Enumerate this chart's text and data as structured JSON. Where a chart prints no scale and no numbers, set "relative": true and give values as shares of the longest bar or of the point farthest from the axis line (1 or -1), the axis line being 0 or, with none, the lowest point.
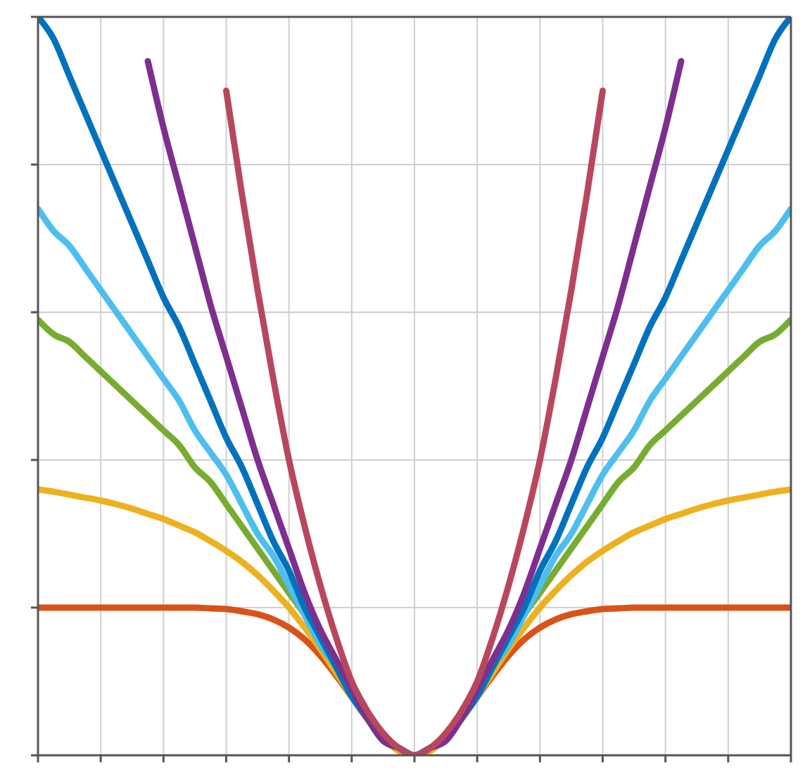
{
  "chart_data": {
    "type": "line",
    "relative": true,
    "tick_labels": false,
    "grid": true,
    "legend": false,
    "marker": "none",
    "line_style": "solid",
    "categories": [
      null,
      null,
      null,
      null,
      null,
      null,
      null,
      null,
      null,
      null,
      null,
      null,
      null,
      null,
      null,
      null,
      null,
      null,
      null,
      null,
      null,
      null,
      null,
      null,
      null,
      null,
      null,
      null,
      null,
      null,
      null,
      null,
      null,
      null,
      null,
      null,
      null,
      null,
      null,
      null,
      null,
      null,
      null,
      null,
      null,
      null,
      null,
      null,
      null
    ],
    "series": [
      {
        "color": "#d95319",
        "values": [
          0.2,
          0.2,
          0.2,
          0.2,
          0.2,
          0.2,
          0.2,
          0.2,
          0.2,
          0.2,
          0.2,
          0.199,
          0.198,
          0.195,
          0.191,
          0.184,
          0.173,
          0.157,
          0.135,
          0.108,
          0.079,
          0.049,
          0.024,
          0.006,
          0,
          0.006,
          0.024,
          0.049,
          0.079,
          0.108,
          0.135,
          0.157,
          0.173,
          0.184,
          0.191,
          0.195,
          0.198,
          0.199,
          0.2,
          0.2,
          0.2,
          0.2,
          0.2,
          0.2,
          0.2,
          0.2,
          0.2,
          0.2,
          0.2
        ]
      },
      {
        "color": "#edb120",
        "values": [
          0.36,
          0.357,
          0.353,
          0.349,
          0.345,
          0.34,
          0.334,
          0.327,
          0.32,
          0.311,
          0.302,
          0.29,
          0.277,
          0.262,
          0.244,
          0.223,
          0.2,
          0.173,
          0.144,
          0.112,
          0.08,
          0.049,
          0.024,
          0.006,
          0,
          0.006,
          0.024,
          0.049,
          0.08,
          0.112,
          0.144,
          0.173,
          0.2,
          0.223,
          0.244,
          0.262,
          0.277,
          0.29,
          0.302,
          0.311,
          0.32,
          0.327,
          0.334,
          0.34,
          0.345,
          0.349,
          0.353,
          0.357,
          0.36
        ]
      },
      {
        "color": "#77ac30",
        "values": [
          0.59,
          0.57,
          0.56,
          0.54,
          0.52,
          0.5,
          0.48,
          0.46,
          0.44,
          0.42,
          0.39,
          0.37,
          0.34,
          0.31,
          0.28,
          0.25,
          0.22,
          0.19,
          0.15,
          0.12,
          0.08,
          0.05,
          0.02,
          0.01,
          0,
          0.01,
          0.02,
          0.05,
          0.08,
          0.12,
          0.15,
          0.19,
          0.22,
          0.25,
          0.28,
          0.31,
          0.34,
          0.37,
          0.39,
          0.42,
          0.44,
          0.46,
          0.48,
          0.5,
          0.52,
          0.54,
          0.56,
          0.57,
          0.59
        ]
      },
      {
        "color": "#4dbeee",
        "values": [
          0.74,
          0.71,
          0.69,
          0.66,
          0.63,
          0.6,
          0.57,
          0.54,
          0.51,
          0.48,
          0.44,
          0.41,
          0.38,
          0.34,
          0.3,
          0.27,
          0.23,
          0.19,
          0.15,
          0.12,
          0.08,
          0.05,
          0.02,
          0.01,
          0,
          0.01,
          0.02,
          0.05,
          0.08,
          0.12,
          0.15,
          0.19,
          0.23,
          0.27,
          0.3,
          0.34,
          0.38,
          0.41,
          0.44,
          0.48,
          0.51,
          0.54,
          0.57,
          0.6,
          0.63,
          0.66,
          0.69,
          0.71,
          0.74
        ]
      },
      {
        "color": "#0072bd",
        "values": [
          1,
          0.97,
          0.92,
          0.87,
          0.82,
          0.77,
          0.72,
          0.67,
          0.62,
          0.58,
          0.53,
          0.48,
          0.43,
          0.39,
          0.34,
          0.29,
          0.25,
          0.2,
          0.16,
          0.12,
          0.08,
          0.05,
          0.02,
          0.01,
          0,
          0.01,
          0.02,
          0.05,
          0.08,
          0.12,
          0.16,
          0.2,
          0.25,
          0.29,
          0.34,
          0.39,
          0.43,
          0.48,
          0.53,
          0.58,
          0.62,
          0.67,
          0.72,
          0.77,
          0.82,
          0.87,
          0.92,
          0.97,
          1
        ]
      },
      {
        "color": "#7e2f8e",
        "values": [
          null,
          null,
          null,
          null,
          null,
          null,
          null,
          0.94,
          0.85,
          0.77,
          0.69,
          0.61,
          0.54,
          0.47,
          0.4,
          0.34,
          0.28,
          0.22,
          0.17,
          0.13,
          0.09,
          0.05,
          0.02,
          0.01,
          0,
          0.01,
          0.02,
          0.05,
          0.09,
          0.13,
          0.17,
          0.22,
          0.28,
          0.34,
          0.4,
          0.47,
          0.54,
          0.61,
          0.69,
          0.77,
          0.85,
          0.94,
          null,
          null,
          null,
          null,
          null,
          null,
          null
        ]
      },
      {
        "color": "#b8475e",
        "values": [
          null,
          null,
          null,
          null,
          null,
          null,
          null,
          null,
          null,
          null,
          null,
          null,
          0.9,
          0.76,
          0.63,
          0.51,
          0.4,
          0.31,
          0.23,
          0.16,
          0.1,
          0.06,
          0.03,
          0.01,
          0,
          0.01,
          0.03,
          0.06,
          0.1,
          0.16,
          0.23,
          0.31,
          0.4,
          0.51,
          0.63,
          0.76,
          0.9,
          null,
          null,
          null,
          null,
          null,
          null,
          null,
          null,
          null,
          null,
          null,
          null
        ]
      }
    ]
  }
}
